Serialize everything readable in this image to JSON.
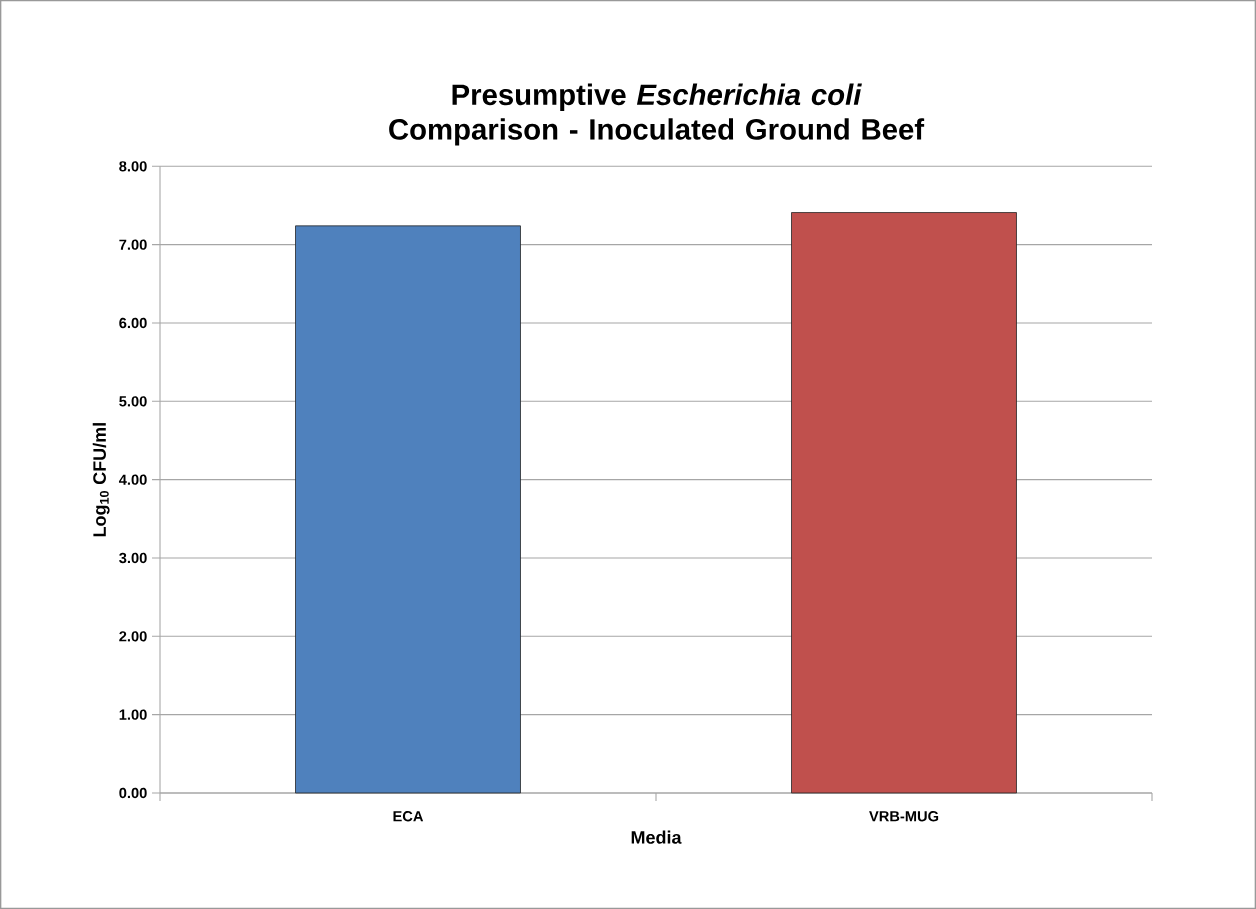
{
  "chart_data": {
    "type": "bar",
    "title": "Presumptive *Escherichia coli* Comparison - Inoculated Ground Beef",
    "xlabel": "Media",
    "ylabel": "Log$_{10}$ CFU/ml",
    "categories": [
      "ECA",
      "VRB-MUG"
    ],
    "values": [
      7.24,
      7.41
    ],
    "colors": [
      "#4f81bd",
      "#c0504d"
    ],
    "ylim": [
      0,
      8
    ],
    "yticks": [
      {
        "value": 0,
        "label": "0.00"
      },
      {
        "value": 1,
        "label": "1.00"
      },
      {
        "value": 2,
        "label": "2.00"
      },
      {
        "value": 3,
        "label": "3.00"
      },
      {
        "value": 4,
        "label": "4.00"
      },
      {
        "value": 5,
        "label": "5.00"
      },
      {
        "value": 6,
        "label": "6.00"
      },
      {
        "value": 7,
        "label": "7.00"
      },
      {
        "value": 8,
        "label": "8.00"
      }
    ],
    "grid": "y"
  }
}
